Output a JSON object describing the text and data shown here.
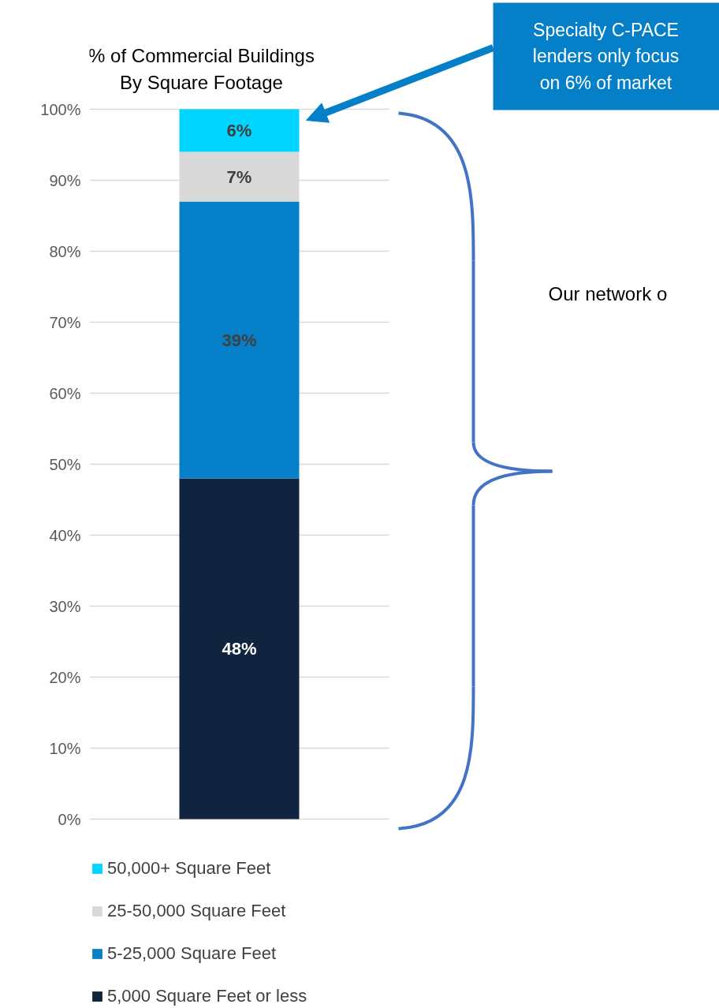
{
  "chart_data": {
    "type": "bar",
    "stacked": true,
    "title": "% of Commercial Buildings\nBy Square Footage",
    "categories": [
      null
    ],
    "series": [
      {
        "name": "5,000 Square Feet or less",
        "color": "#10233f",
        "values": [
          48
        ],
        "value_labels": [
          "48%"
        ]
      },
      {
        "name": "5-25,000 Square Feet",
        "color": "#0580c8",
        "values": [
          39
        ],
        "value_labels": [
          "39%"
        ]
      },
      {
        "name": "25-50,000 Square Feet",
        "color": "#d9d9d9",
        "values": [
          7
        ],
        "value_labels": [
          "7%"
        ]
      },
      {
        "name": "50,000+ Square Feet",
        "color": "#00d4ff",
        "values": [
          6
        ],
        "value_labels": [
          "6%"
        ]
      }
    ],
    "ylim": [
      0,
      100
    ],
    "yticks": [
      {
        "value": 0,
        "label": "0%"
      },
      {
        "value": 10,
        "label": "10%"
      },
      {
        "value": 20,
        "label": "20%"
      },
      {
        "value": 30,
        "label": "30%"
      },
      {
        "value": 40,
        "label": "40%"
      },
      {
        "value": 50,
        "label": "50%"
      },
      {
        "value": 60,
        "label": "60%"
      },
      {
        "value": 70,
        "label": "70%"
      },
      {
        "value": 80,
        "label": "80%"
      },
      {
        "value": 90,
        "label": "90%"
      },
      {
        "value": 100,
        "label": "100%"
      }
    ],
    "grid": "y",
    "legend": "bottom",
    "annotations": [
      "Specialty C-PACE\nlenders only focus\non 6% of market",
      "Our network o"
    ]
  }
}
